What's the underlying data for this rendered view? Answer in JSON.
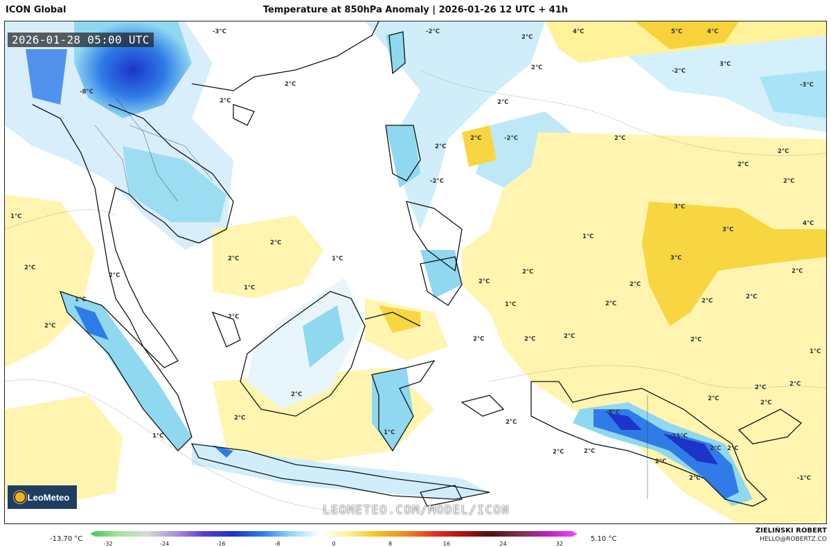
{
  "header": {
    "model": "ICON Global",
    "title": "Temperature at 850hPa Anomaly | 2026-01-26 12 UTC + 41h"
  },
  "map": {
    "valid_time": "2026-01-28 05:00 UTC",
    "watermark": "LEOMETEO.COM/MODEL/ICON",
    "logo_text": "LeoMeteo",
    "labels": [
      {
        "text": "-3°C"
      },
      {
        "text": "-2°C"
      },
      {
        "text": "2°C"
      },
      {
        "text": "4°C"
      },
      {
        "text": "5°C"
      },
      {
        "text": "4°C"
      },
      {
        "text": "-2°C"
      },
      {
        "text": "2°C"
      },
      {
        "text": "-3°C"
      },
      {
        "text": "-8°C"
      },
      {
        "text": "2°C"
      },
      {
        "text": "2°C"
      },
      {
        "text": "2°C"
      },
      {
        "text": "3°C"
      },
      {
        "text": "2°C"
      },
      {
        "text": "2°C"
      },
      {
        "text": "-2°C"
      },
      {
        "text": "2°C"
      },
      {
        "text": "2°C"
      },
      {
        "text": "2°C"
      },
      {
        "text": "-2°C"
      },
      {
        "text": "2°C"
      },
      {
        "text": "3°C"
      },
      {
        "text": "3°C"
      },
      {
        "text": "4°C"
      },
      {
        "text": "1°C"
      },
      {
        "text": "2°C"
      },
      {
        "text": "2°C"
      },
      {
        "text": "1°C"
      },
      {
        "text": "2°C"
      },
      {
        "text": "3°C"
      },
      {
        "text": "2°C"
      },
      {
        "text": "2°C"
      },
      {
        "text": "1°C"
      },
      {
        "text": "2°C"
      },
      {
        "text": "2°C"
      },
      {
        "text": "2°C"
      },
      {
        "text": "2°C"
      },
      {
        "text": "2°C"
      },
      {
        "text": "1°C"
      },
      {
        "text": "2°C"
      },
      {
        "text": "2°C"
      },
      {
        "text": "2°C"
      },
      {
        "text": "1°C"
      },
      {
        "text": "2°C"
      },
      {
        "text": "2°C"
      },
      {
        "text": "-8°C"
      },
      {
        "text": "-11°C"
      },
      {
        "text": "2°C"
      },
      {
        "text": "2°C"
      },
      {
        "text": "1°C"
      },
      {
        "text": "1°C"
      },
      {
        "text": "2°C"
      },
      {
        "text": "2°C"
      },
      {
        "text": "2°C"
      },
      {
        "text": "2°C"
      },
      {
        "text": "2°C"
      },
      {
        "text": "1°C"
      },
      {
        "text": "2°C"
      },
      {
        "text": "2°C"
      },
      {
        "text": "2°C"
      },
      {
        "text": "2°C"
      },
      {
        "text": "2°C"
      },
      {
        "text": "2°C"
      },
      {
        "text": "-1°C"
      },
      {
        "text": "1°C"
      },
      {
        "text": "2°C"
      },
      {
        "text": "2°C"
      }
    ]
  },
  "legend": {
    "min_value": "-13.70 °C",
    "max_value": "5.10 °C",
    "ticks": [
      "-32",
      "-24",
      "-16",
      "-8",
      "0",
      "8",
      "16",
      "24",
      "32"
    ],
    "colors": [
      "#38c84a",
      "#a9e2a0",
      "#d8d8d8",
      "#a990d8",
      "#5a3ad0",
      "#1c34c8",
      "#2f7ce8",
      "#8fd8f0",
      "#ffffff",
      "#fff29a",
      "#f4c21a",
      "#f08a1a",
      "#e83020",
      "#b01010",
      "#501010",
      "#803050",
      "#c020c0",
      "#ff44ff"
    ]
  },
  "footer": {
    "author": "ZIELIŃSKI ROBERT",
    "email": "HELLO@ROBERTZ.CO"
  }
}
